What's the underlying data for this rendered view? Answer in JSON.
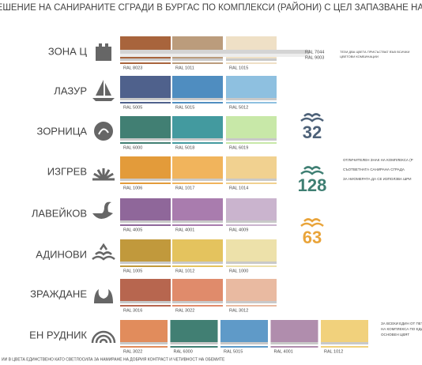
{
  "header": {
    "title": "РЕШЕНИЕ НА САНИРАНИТЕ СГРАДИ В БУРГАС ПО КОМПЛЕКСИ (РАЙОНИ) С ЦЕЛ ЗАПАЗВАНЕ НА ТЯХНАТА ИНДИВИ"
  },
  "rows": [
    {
      "name": "ЗОНА Ц",
      "swatches": [
        {
          "label": "RAL 8023",
          "color": "#a8643c"
        },
        {
          "label": "RAL 1011",
          "color": "#bb9c7c"
        },
        {
          "label": "RAL 1015",
          "color": "#efe0c6"
        }
      ]
    },
    {
      "name": "ЛАЗУР",
      "swatches": [
        {
          "label": "RAL 5005",
          "color": "#4f618c"
        },
        {
          "label": "RAL 5015",
          "color": "#4f8dc0"
        },
        {
          "label": "RAL 5012",
          "color": "#8ec0e0"
        }
      ]
    },
    {
      "name": "ЗОРНИЦА",
      "swatches": [
        {
          "label": "RAL 6000",
          "color": "#417f73"
        },
        {
          "label": "RAL 5018",
          "color": "#439a9f"
        },
        {
          "label": "RAL 6019",
          "color": "#c8e8a8"
        }
      ]
    },
    {
      "name": "ИЗГРЕВ",
      "swatches": [
        {
          "label": "RAL 1006",
          "color": "#e39b3a"
        },
        {
          "label": "RAL 1017",
          "color": "#f1b45c"
        },
        {
          "label": "RAL 1014",
          "color": "#f1d190"
        }
      ]
    },
    {
      "name": "ЛАВЕЙКОВ",
      "swatches": [
        {
          "label": "RAL 4005",
          "color": "#8f679a"
        },
        {
          "label": "RAL 4001",
          "color": "#a97cae"
        },
        {
          "label": "RAL 4009",
          "color": "#cab4ce"
        }
      ]
    },
    {
      "name": "АДИНОВИ",
      "swatches": [
        {
          "label": "RAL 1005",
          "color": "#c1993c"
        },
        {
          "label": "RAL 1012",
          "color": "#e4c35e"
        },
        {
          "label": "RAL 1000",
          "color": "#ede1aa"
        }
      ]
    },
    {
      "name": "ЗРАЖДАНЕ",
      "swatches": [
        {
          "label": "RAL 3016",
          "color": "#b7664f"
        },
        {
          "label": "RAL 3022",
          "color": "#e08b6b"
        },
        {
          "label": "RAL 3012",
          "color": "#e9baa1"
        }
      ]
    },
    {
      "name": "ЕН РУДНИК",
      "swatches": [
        {
          "label": "RAL 3022",
          "color": "#e18c5c"
        },
        {
          "label": "RAL 6000",
          "color": "#417f73"
        },
        {
          "label": "RAL 5015",
          "color": "#5f9ac8"
        },
        {
          "label": "RAL 4001",
          "color": "#b08dad"
        },
        {
          "label": "RAL 1012",
          "color": "#f1d17c"
        }
      ]
    }
  ],
  "common": {
    "labels": [
      "RAL 7044",
      "RAL 9003"
    ],
    "note": [
      "ТЕЗИ ДВА ЦВЕТА ПРИСЪСТВАТ ВЪВ ВСИЧКИ",
      "ЦВЕТОВИ КОМБИНАЦИИ"
    ]
  },
  "badges": [
    {
      "number": "32",
      "color": "#4d6178"
    },
    {
      "number": "128",
      "color": "#3f7f73"
    },
    {
      "number": "63",
      "color": "#e9a43a"
    }
  ],
  "badge_note": [
    "ОТЛИЧИТЕЛЕН ЗНАК НА КОМПЛЕКСА (Р",
    "СЪОТВЕТНАТА САНИРАНА СГРАДА",
    "ЗА НИОМЕРАТА ДА СЕ ИЗПОЛЗВА ШРИ"
  ],
  "last_note": [
    "ЗА ВСЕКИ ЕДИН ОТ ПЕТ",
    "НА КОМПЛЕКСА ПО ЕДИ",
    "ОСНОВЕН ЦВЯТ"
  ],
  "footer": "ИИ В ЦВЕТА ЕДИНСТВЕНО КАТО СВЕТЛОСИЛА ЗА НАМИРАНЕ НА ДОБРИЯ КОНТРАСТ И ЧЕТИВНОСТ НА ОБЕМИТЕ"
}
